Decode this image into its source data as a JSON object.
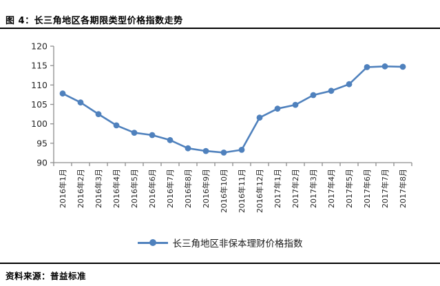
{
  "figure": {
    "title": "图 4：长三角地区各期限类型价格指数走势"
  },
  "legend": {
    "label": "长三角地区非保本理财价格指数"
  },
  "footer": {
    "source": "资料来源：普益标准"
  },
  "colors": {
    "series": "#4F81BD",
    "axis": "#8C8C8C",
    "tick_text": "#262626"
  },
  "chart_data": {
    "type": "line",
    "title": "图 4：长三角地区各期限类型价格指数走势",
    "categories": [
      "2016年1月",
      "2016年2月",
      "2016年3月",
      "2016年4月",
      "2016年5月",
      "2016年6月",
      "2016年7月",
      "2016年8月",
      "2016年9月",
      "2016年10月",
      "2016年11月",
      "2016年12月",
      "2017年1月",
      "2017年2月",
      "2017年3月",
      "2017年4月",
      "2017年5月",
      "2017年6月",
      "2017年7月",
      "2017年8月"
    ],
    "series": [
      {
        "name": "长三角地区非保本理财价格指数",
        "values": [
          107.8,
          105.5,
          102.5,
          99.6,
          97.7,
          97.1,
          95.8,
          93.7,
          93.0,
          92.6,
          93.3,
          101.6,
          103.9,
          104.9,
          107.4,
          108.5,
          110.2,
          114.6,
          114.8,
          114.7
        ]
      }
    ],
    "xlabel": "",
    "ylabel": "",
    "ylim": [
      90,
      120
    ],
    "ytick_step": 5,
    "grid": false,
    "legend_position": "bottom",
    "marker": "circle"
  }
}
